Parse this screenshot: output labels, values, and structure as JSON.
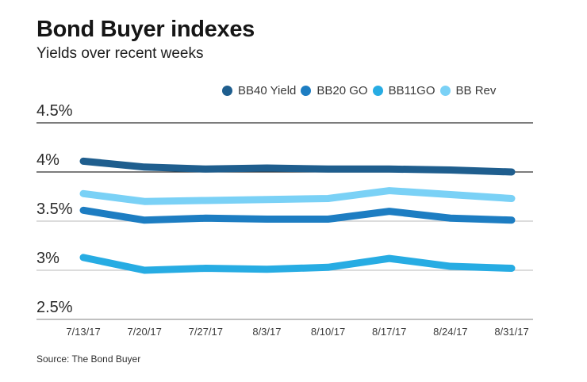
{
  "header": {
    "title": "Bond Buyer indexes",
    "subtitle": "Yields over recent weeks"
  },
  "source_note": "Source: The Bond Buyer",
  "legend": [
    {
      "label": "BB40 Yield",
      "color": "#1f5e8e"
    },
    {
      "label": "BB20 GO",
      "color": "#1d7dc2"
    },
    {
      "label": "BB11GO",
      "color": "#27ace3"
    },
    {
      "label": "BB Rev",
      "color": "#7ad1f6"
    }
  ],
  "chart_data": {
    "type": "line",
    "title": "Bond Buyer indexes",
    "subtitle": "Yields over recent weeks",
    "x": [
      "7/13/17",
      "7/20/17",
      "7/27/17",
      "8/3/17",
      "8/10/17",
      "8/17/17",
      "8/24/17",
      "8/31/17"
    ],
    "series": [
      {
        "name": "BB40 Yield",
        "color": "#1f5e8e",
        "values": [
          4.11,
          4.05,
          4.03,
          4.04,
          4.03,
          4.03,
          4.02,
          4.0
        ]
      },
      {
        "name": "BB20 GO",
        "color": "#1d7dc2",
        "values": [
          3.61,
          3.51,
          3.53,
          3.52,
          3.52,
          3.6,
          3.53,
          3.51
        ]
      },
      {
        "name": "BB11GO",
        "color": "#27ace3",
        "values": [
          3.13,
          3.0,
          3.02,
          3.01,
          3.03,
          3.12,
          3.04,
          3.02
        ]
      },
      {
        "name": "BB Rev",
        "color": "#7ad1f6",
        "values": [
          3.78,
          3.7,
          3.71,
          3.72,
          3.73,
          3.81,
          3.77,
          3.73
        ]
      }
    ],
    "xlabel": "",
    "ylabel": "",
    "y_ticks": [
      "4.5%",
      "4%",
      "3.5%",
      "3%",
      "2.5%"
    ],
    "y_tick_values": [
      4.5,
      4.0,
      3.5,
      3.0,
      2.5
    ],
    "grid_colors": [
      "#2e2e2e",
      "#2e2e2e",
      "#c6c6c6",
      "#c6c6c6",
      "#9a9a9a"
    ],
    "ylim": [
      2.5,
      4.5
    ],
    "grid": true,
    "legend_position": "top",
    "source": "Source: The Bond Buyer"
  }
}
